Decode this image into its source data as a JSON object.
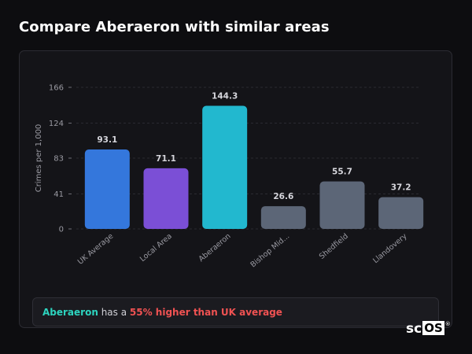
{
  "page": {
    "title": "Compare Aberaeron with similar areas"
  },
  "chart_data": {
    "type": "bar",
    "ylabel": "Crimes per 1,000",
    "ylim": [
      0,
      166
    ],
    "yticks": [
      0,
      41,
      83,
      124,
      166
    ],
    "grid": "horizontal dashed",
    "categories": [
      "UK Average",
      "Local Area",
      "Aberaeron",
      "Bishop Mid...",
      "Shedfield",
      "Llandovery"
    ],
    "values": [
      93.1,
      71.1,
      144.3,
      26.6,
      55.7,
      37.2
    ],
    "value_labels": [
      "93.1",
      "71.1",
      "144.3",
      "26.6",
      "55.7",
      "37.2"
    ],
    "colors": [
      "#3477dc",
      "#7b4fd6",
      "#22b8cf",
      "#5c6677",
      "#5c6677",
      "#5c6677"
    ]
  },
  "summary": {
    "place": "Aberaeron",
    "middle": " has a ",
    "delta": "55% higher than UK average"
  },
  "brand": {
    "sc": "sc",
    "os": "OS",
    "reg": "®"
  }
}
